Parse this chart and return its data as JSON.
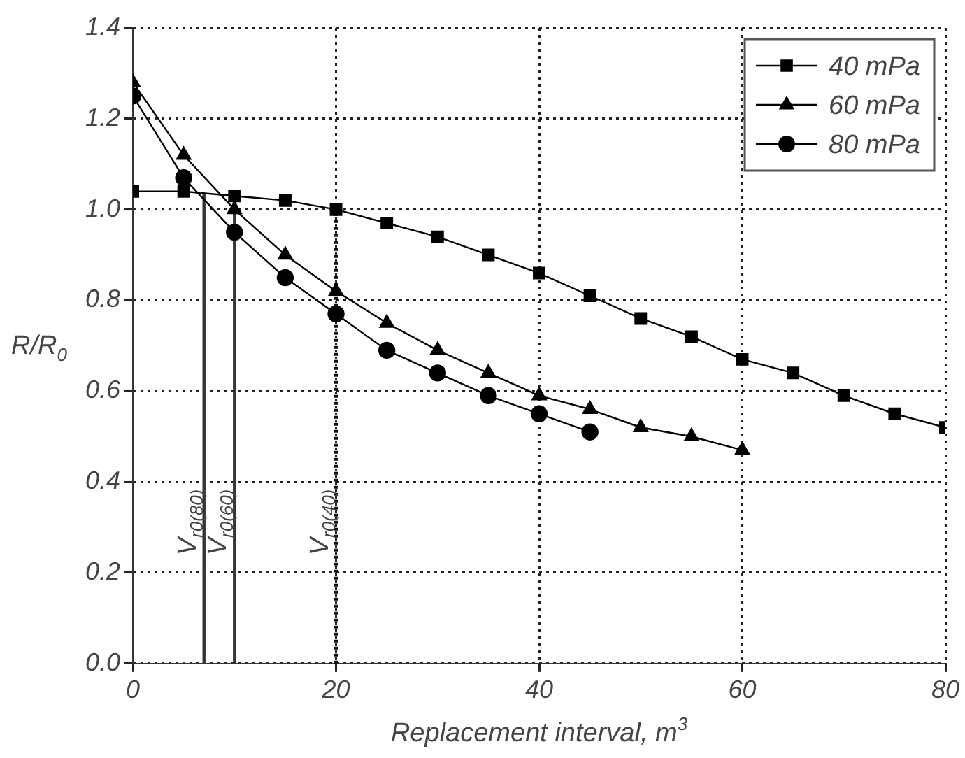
{
  "chart_data": {
    "type": "line",
    "xlabel": "Replacement interval, m$^{3}$",
    "ylabel": "R/R$_{0}$",
    "xlim": [
      0,
      80
    ],
    "xticks": [
      0,
      20,
      40,
      60,
      80
    ],
    "ylim": [
      0,
      1.4
    ],
    "yticks": [
      {
        "value": 0,
        "label": "0.0"
      },
      {
        "value": 0.2,
        "label": "0.2"
      },
      {
        "value": 0.4,
        "label": "0.4"
      },
      {
        "value": 0.6,
        "label": "0.6"
      },
      {
        "value": 0.8,
        "label": "0.8"
      },
      {
        "value": 1,
        "label": "1.0"
      },
      {
        "value": 1.2,
        "label": "1.2"
      },
      {
        "value": 1.4,
        "label": "1.4"
      }
    ],
    "grid": true,
    "legend": "top right",
    "line_style": "solid",
    "series": [
      {
        "name": "40 mPa",
        "color": "#000000",
        "marker": "square",
        "x": [
          0,
          5,
          10,
          15,
          20,
          25,
          30,
          35,
          40,
          45,
          50,
          55,
          60,
          65,
          70,
          75,
          80
        ],
        "values": [
          1.04,
          1.04,
          1.03,
          1.02,
          1.0,
          0.97,
          0.94,
          0.9,
          0.86,
          0.81,
          0.76,
          0.72,
          0.67,
          0.64,
          0.59,
          0.55,
          0.52
        ]
      },
      {
        "name": "60 mPa",
        "color": "#000000",
        "marker": "triangle",
        "x": [
          0,
          5,
          10,
          15,
          20,
          25,
          30,
          35,
          40,
          45,
          50,
          55,
          60
        ],
        "values": [
          1.28,
          1.12,
          1.0,
          0.9,
          0.82,
          0.75,
          0.69,
          0.64,
          0.59,
          0.56,
          0.52,
          0.5,
          0.47
        ]
      },
      {
        "name": "80 mPa",
        "color": "#000000",
        "marker": "circle",
        "x": [
          0,
          5,
          10,
          15,
          20,
          25,
          30,
          35,
          40,
          45
        ],
        "values": [
          1.25,
          1.07,
          0.95,
          0.85,
          0.77,
          0.69,
          0.64,
          0.59,
          0.55,
          0.51
        ]
      }
    ],
    "ref_lines": [
      {
        "axis": "x",
        "value": 7,
        "label": "V$_{r0(80)}$",
        "color": "#333333",
        "line_style": "solid"
      },
      {
        "axis": "x",
        "value": 10,
        "label": "V$_{r0(60)}$",
        "color": "#333333",
        "line_style": "solid"
      },
      {
        "axis": "x",
        "value": 20,
        "label": "V$_{r0(40)}$",
        "color": "#111111",
        "line_style": "dotted"
      }
    ]
  }
}
